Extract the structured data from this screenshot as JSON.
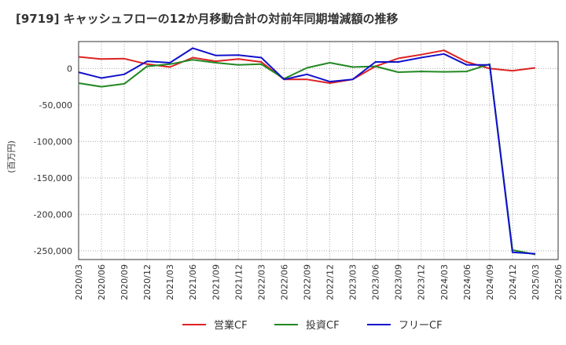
{
  "chart_data": {
    "type": "line",
    "title": "[9719]  キャッシュフローの12か月移動合計の対前年同期増減額の推移",
    "ylabel": "(百万円)",
    "xlabel": "",
    "ylim": [
      -262000,
      37000
    ],
    "yticks": [
      0,
      -50000,
      -100000,
      -150000,
      -200000,
      -250000
    ],
    "ytick_labels": [
      "0",
      "-50,000",
      "-100,000",
      "-150,000",
      "-200,000",
      "-250,000"
    ],
    "xtick_labels": [
      "2020/03",
      "2020/06",
      "2020/09",
      "2020/12",
      "2021/03",
      "2021/06",
      "2021/09",
      "2021/12",
      "2022/03",
      "2022/06",
      "2022/09",
      "2022/12",
      "2023/03",
      "2023/06",
      "2023/09",
      "2023/12",
      "2024/03",
      "2024/06",
      "2024/09",
      "2024/12",
      "2025/03",
      "2025/06"
    ],
    "categories": [
      "2020/03",
      "2020/06",
      "2020/09",
      "2020/12",
      "2021/03",
      "2021/06",
      "2021/09",
      "2021/12",
      "2022/03",
      "2022/06",
      "2022/09",
      "2022/12",
      "2023/03",
      "2023/06",
      "2023/09",
      "2023/12",
      "2024/03",
      "2024/06",
      "2024/09",
      "2024/12",
      "2025/03"
    ],
    "grid": true,
    "legend_position": "bottom",
    "series": [
      {
        "name": "営業CF",
        "color": "#dd2222",
        "values": [
          16000,
          13000,
          13500,
          6000,
          2000,
          15000,
          10000,
          13000,
          9000,
          -15000,
          -15000,
          -20000,
          -15000,
          3000,
          14000,
          19000,
          25000,
          9000,
          0,
          -3000,
          1000
        ]
      },
      {
        "name": "投資CF",
        "color": "#228822",
        "values": [
          -20000,
          -25000,
          -21000,
          3000,
          6000,
          12000,
          8000,
          5000,
          6000,
          -14000,
          1000,
          8000,
          2000,
          3000,
          -5000,
          -4000,
          -4500,
          -4000,
          6000,
          -249000,
          -255000
        ]
      },
      {
        "name": "フリーCF",
        "color": "#1111cc",
        "values": [
          -5000,
          -13000,
          -8000,
          10000,
          8000,
          28000,
          18000,
          18500,
          15000,
          -15000,
          -8000,
          -18000,
          -15000,
          9000,
          9000,
          15000,
          20000,
          5000,
          5000,
          -252000,
          -254000
        ]
      }
    ]
  }
}
